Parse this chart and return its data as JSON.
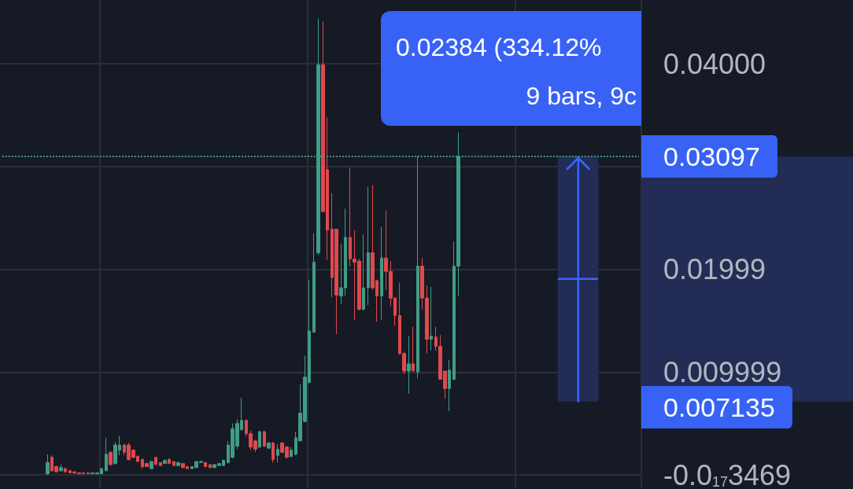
{
  "chart_data": {
    "type": "candlestick",
    "categories": [
      null,
      null,
      null,
      null,
      null,
      null,
      null,
      null,
      null,
      null,
      null,
      null,
      null,
      null,
      null,
      null,
      null,
      null,
      null,
      null,
      null,
      null,
      null,
      null,
      null,
      null,
      null,
      null,
      null,
      null,
      null,
      null,
      null,
      null,
      null,
      null,
      null,
      null,
      null,
      null,
      null,
      null,
      null,
      null,
      null,
      null,
      null,
      null,
      null,
      null,
      null,
      null,
      null,
      null,
      null,
      null,
      null,
      null,
      null,
      null,
      null,
      null,
      null,
      null,
      null,
      null,
      null,
      null,
      null,
      null,
      null,
      null,
      null,
      null,
      null,
      null,
      null,
      null,
      null,
      null,
      null,
      null,
      null,
      null,
      null,
      null,
      null,
      null,
      null,
      null,
      null,
      null,
      null,
      null,
      null,
      null,
      null,
      null,
      null,
      null,
      null,
      null,
      null,
      null,
      null,
      null,
      null,
      null,
      null,
      null,
      null,
      null,
      null,
      null,
      null,
      null,
      null,
      null,
      null,
      null,
      null,
      null,
      null,
      null,
      null,
      null,
      null,
      null,
      null,
      null,
      null,
      null,
      null,
      null,
      null,
      null,
      null,
      null,
      null,
      null,
      null,
      null
    ],
    "ohlc": [
      null,
      null,
      null,
      null,
      null,
      null,
      null,
      null,
      null,
      null,
      [
        0.0001,
        0.002,
        0,
        0.0012
      ],
      [
        0.0017,
        0.0019,
        0.0003,
        0.0004
      ],
      [
        0.0008,
        0.0009,
        0.0002,
        0.0003
      ],
      [
        0.0004,
        0.001,
        0.0003,
        0.0007
      ],
      [
        0.0006,
        0.0007,
        0.0002,
        0.0003
      ],
      [
        0.0004,
        0.0005,
        0.0002,
        0.0002
      ],
      [
        0.0003,
        0.0003,
        0.0001,
        0.0002
      ],
      [
        0.0002,
        0.0002,
        0.0001,
        0.0001
      ],
      [
        0.0002,
        0.0002,
        0.0001,
        0.0001
      ],
      [
        0.0002,
        0.0002,
        0.0001,
        0.0001
      ],
      [
        0.0001,
        0.0002,
        0.0001,
        0.0002
      ],
      [
        0.0001,
        0.0002,
        0.0001,
        0.0002
      ],
      [
        0.0001,
        0.0007,
        0.0001,
        0.0006
      ],
      [
        0.0004,
        0.0036,
        0.0004,
        0.002
      ],
      [
        0.0022,
        0.0023,
        0.0009,
        0.001
      ],
      [
        0.0011,
        0.0032,
        0.001,
        0.0029
      ],
      [
        0.0024,
        0.0038,
        0.0019,
        0.0029
      ],
      [
        0.0029,
        0.003,
        0.0019,
        0.0022
      ],
      [
        0.0029,
        0.0031,
        0.0014,
        0.0015
      ],
      [
        0.0024,
        0.0025,
        0.0016,
        0.0017
      ],
      [
        0.0018,
        0.0019,
        0.0013,
        0.0013
      ],
      [
        0.0015,
        0.0016,
        0.0006,
        0.0008
      ],
      [
        0.0011,
        0.0012,
        0.0008,
        0.0008
      ],
      [
        0.0006,
        0.0013,
        0.0006,
        0.0013
      ],
      [
        0.0017,
        0.0017,
        0.001,
        0.001
      ],
      [
        0.0012,
        0.0012,
        0.0009,
        0.0009
      ],
      [
        0.0011,
        0.0015,
        0.0011,
        0.0014
      ],
      [
        0.0015,
        0.0016,
        0.0011,
        0.0011
      ],
      [
        0.0013,
        0.0013,
        0.0009,
        0.0009
      ],
      [
        0.0009,
        0.0012,
        0.0009,
        0.0012
      ],
      [
        0.0011,
        0.0011,
        0.0007,
        0.0007
      ],
      [
        0.0008,
        0.0008,
        0.0006,
        0.0006
      ],
      [
        0.0006,
        0.0008,
        0.0006,
        0.0008
      ],
      [
        0.0007,
        0.0013,
        0.0007,
        0.0013
      ],
      [
        0.0012,
        0.0014,
        0.0012,
        0.0013
      ],
      [
        0.0012,
        0.0012,
        0.0008,
        0.0008
      ],
      [
        0.001,
        0.001,
        0.0007,
        0.0007
      ],
      [
        0.0007,
        0.001,
        0.0007,
        0.001
      ],
      [
        0.0009,
        0.0011,
        0.0009,
        0.0011
      ],
      [
        0.0009,
        0.0015,
        0.0009,
        0.0014
      ],
      [
        0.0012,
        0.0033,
        0.0011,
        0.0029
      ],
      [
        0.0017,
        0.005,
        0.0016,
        0.0045
      ],
      [
        0.0028,
        0.0054,
        0.0025,
        0.005
      ],
      [
        0.0044,
        0.0075,
        0.0043,
        0.0053
      ],
      [
        0.0053,
        0.0054,
        0.0037,
        0.004
      ],
      [
        0.004,
        0.0043,
        0.0024,
        0.0027
      ],
      [
        0.0033,
        0.0034,
        0.0022,
        0.0025
      ],
      [
        0.0027,
        0.0043,
        0.0026,
        0.0042
      ],
      [
        0.0042,
        0.0043,
        0.0027,
        0.0028
      ],
      [
        0.0026,
        0.0032,
        0.0025,
        0.0031
      ],
      [
        0.0031,
        0.0032,
        0.0012,
        0.0015
      ],
      [
        0.0019,
        0.003,
        0.0012,
        0.0025
      ],
      [
        0.0031,
        0.0032,
        0.0021,
        0.0022
      ],
      [
        0.0027,
        0.0028,
        0.0016,
        0.0017
      ],
      [
        0.0018,
        0.0027,
        0.0017,
        0.0024
      ],
      [
        0.002,
        0.0042,
        0.0019,
        0.0036
      ],
      [
        0.0033,
        0.0088,
        0.0033,
        0.006
      ],
      [
        0.0052,
        0.0116,
        0.0051,
        0.0095
      ],
      [
        0.009,
        0.019,
        0.0089,
        0.014
      ],
      [
        0.0139,
        0.0235,
        0.0138,
        0.0207
      ],
      [
        0.0216,
        0.0444,
        0.0214,
        0.0399
      ],
      [
        0.0399,
        0.0441,
        0.0256,
        0.0256
      ],
      [
        0.0297,
        0.0348,
        0.0209,
        0.0238
      ],
      [
        0.0239,
        0.0274,
        0.0173,
        0.0192
      ],
      [
        0.0239,
        0.0239,
        0.0137,
        0.0175
      ],
      [
        0.0174,
        0.0225,
        0.0166,
        0.0182
      ],
      [
        0.0182,
        0.0259,
        0.0174,
        0.0231
      ],
      [
        0.0231,
        0.0299,
        0.0203,
        0.021
      ],
      [
        0.021,
        0.0238,
        0.0151,
        0.0207
      ],
      [
        0.0208,
        0.021,
        0.016,
        0.0161
      ],
      [
        0.0161,
        0.0234,
        0.016,
        0.0182
      ],
      [
        0.0182,
        0.028,
        0.0165,
        0.0216
      ],
      [
        0.0216,
        0.0282,
        0.018,
        0.0182
      ],
      [
        0.0189,
        0.019,
        0.0149,
        0.0174
      ],
      [
        0.0174,
        0.0241,
        0.0151,
        0.0211
      ],
      [
        0.0211,
        0.0257,
        0.018,
        0.0198
      ],
      [
        0.0198,
        0.0208,
        0.0164,
        0.0172
      ],
      [
        0.0172,
        0.0173,
        0.0145,
        0.0155
      ],
      [
        0.0155,
        0.0187,
        0.0117,
        0.0118
      ],
      [
        0.0118,
        0.012,
        0.0098,
        0.0101
      ],
      [
        0.0101,
        0.0135,
        0.0079,
        0.0108
      ],
      [
        0.0108,
        0.0144,
        0.0101,
        0.0101
      ],
      [
        0.01,
        0.031,
        0.0094,
        0.0203
      ],
      [
        0.0203,
        0.0211,
        0.0161,
        0.0172
      ],
      [
        0.0172,
        0.0184,
        0.0118,
        0.0132
      ],
      [
        0.0132,
        0.0183,
        0.0121,
        0.0135
      ],
      [
        0.0134,
        0.0144,
        0.0121,
        0.0125
      ],
      [
        0.0125,
        0.0136,
        0.0093,
        0.0093
      ],
      [
        0.0101,
        0.0101,
        0.0074,
        0.0084
      ],
      [
        0.0084,
        0.0112,
        0.0062,
        0.0102
      ],
      [
        0.0093,
        0.0227,
        0.0092,
        0.0203
      ],
      [
        0.0203,
        0.0333,
        0.0174,
        0.031
      ],
      null,
      null,
      null,
      null,
      null,
      null,
      null,
      null,
      null,
      null,
      null,
      null,
      null,
      null,
      null,
      null,
      null,
      null,
      null,
      null,
      null,
      null,
      null,
      null,
      null,
      null,
      null,
      null,
      null,
      null,
      null,
      null,
      null,
      null,
      null,
      null,
      null,
      null,
      null,
      null
    ],
    "colors": [
      null,
      null,
      null,
      null,
      null,
      null,
      null,
      null,
      null,
      null,
      "#3f9c85",
      "#e0494d",
      "#e0494d",
      "#3f9c85",
      "#e0494d",
      "#e0494d",
      "#e0494d",
      "#e0494d",
      "#e0494d",
      "#e0494d",
      "#3f9c85",
      "#3f9c85",
      "#3f9c85",
      "#3f9c85",
      "#e0494d",
      "#3f9c85",
      "#3f9c85",
      "#e0494d",
      "#e0494d",
      "#e0494d",
      "#e0494d",
      "#e0494d",
      "#e0494d",
      "#3f9c85",
      "#e0494d",
      "#e0494d",
      "#3f9c85",
      "#e0494d",
      "#e0494d",
      "#3f9c85",
      "#e0494d",
      "#e0494d",
      "#3f9c85",
      "#3f9c85",
      "#3f9c85",
      "#e0494d",
      "#e0494d",
      "#3f9c85",
      "#3f9c85",
      "#3f9c85",
      "#3f9c85",
      "#3f9c85",
      "#3f9c85",
      "#3f9c85",
      "#e0494d",
      "#e0494d",
      "#e0494d",
      "#3f9c85",
      "#e0494d",
      "#3f9c85",
      "#e0494d",
      "#3f9c85",
      "#e0494d",
      "#e0494d",
      "#3f9c85",
      "#3f9c85",
      "#3f9c85",
      "#3f9c85",
      "#3f9c85",
      "#3f9c85",
      "#3f9c85",
      "#e0494d",
      "#e0494d",
      "#e0494d",
      "#e0494d",
      "#3f9c85",
      "#3f9c85",
      "#e0494d",
      "#e0494d",
      "#e0494d",
      "#3f9c85",
      "#3f9c85",
      "#e0494d",
      "#e0494d",
      "#3f9c85",
      "#e0494d",
      "#e0494d",
      "#e0494d",
      "#e0494d",
      "#e0494d",
      "#3f9c85",
      "#e0494d",
      "#3f9c85",
      "#e0494d",
      "#e0494d",
      "#3f9c85",
      "#e0494d",
      "#e0494d",
      "#e0494d",
      "#3f9c85",
      "#3f9c85",
      "#3f9c85",
      null,
      null,
      null,
      null,
      null,
      null,
      null,
      null,
      null,
      null,
      null,
      null,
      null,
      null,
      null,
      null,
      null,
      null,
      null,
      null,
      null,
      null,
      null,
      null,
      null,
      null,
      null,
      null,
      null,
      null,
      null,
      null,
      null,
      null,
      null,
      null,
      null,
      null,
      null,
      null
    ],
    "ylim": [
      -0.0013,
      0.0462
    ],
    "yticks": [
      {
        "value": 0,
        "label": "-0.0$_{17}$3469"
      },
      {
        "value": 0.009999,
        "label": "0.009999"
      },
      {
        "value": 0.01999,
        "label": "0.01999"
      },
      {
        "value": 0.03,
        "label": null
      },
      {
        "value": 0.04,
        "label": "0.04000"
      }
    ],
    "grid": true,
    "tick_labels": "y",
    "ref_lines": [
      {
        "axis": "y",
        "value": 0.03097,
        "label": "0.03097",
        "color": "#3f9c85",
        "line_style": "dotted"
      }
    ],
    "bands": [
      {
        "axis": "y",
        "from": 0.007135,
        "to": 0.03097,
        "color": "#222c55",
        "label": "0.007135"
      }
    ],
    "annotations": [
      "0.02384 (334.12%",
      "9 bars, 9c"
    ]
  }
}
